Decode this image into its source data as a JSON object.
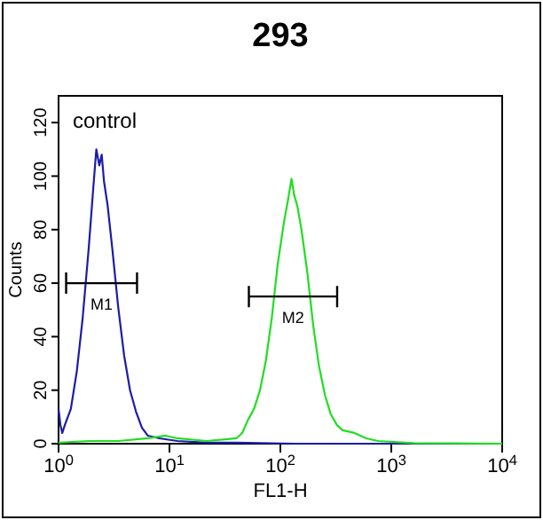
{
  "chart_data": {
    "type": "line",
    "title": "293",
    "xlabel": "FL1-H",
    "ylabel": "Counts",
    "log": "x",
    "xlim": [
      1,
      10000
    ],
    "xticks": [
      {
        "value": 1,
        "label": "10$^{0}$"
      },
      {
        "value": 10,
        "label": "10$^{1}$"
      },
      {
        "value": 100,
        "label": "10$^{2}$"
      },
      {
        "value": 1000,
        "label": "10$^{3}$"
      },
      {
        "value": 10000,
        "label": "10$^{4}$"
      }
    ],
    "ylim": [
      0,
      130
    ],
    "yticks": [
      0,
      20,
      40,
      60,
      80,
      100,
      120
    ],
    "grid": false,
    "line_style": "solid",
    "annotations": [
      "control"
    ],
    "series": [
      {
        "color": "#1c1ca8",
        "x": [
          1,
          1.04,
          1.08,
          1.14,
          1.29,
          1.46,
          1.65,
          1.87,
          2.06,
          2.19,
          2.33,
          2.45,
          2.57,
          2.77,
          3.05,
          3.45,
          3.9,
          4.41,
          4.99,
          5.64,
          6.37,
          8.15,
          11.8,
          21.7,
          40.1,
          137,
          10000
        ],
        "values": [
          13,
          7,
          4,
          7,
          13,
          27,
          47,
          73,
          96,
          110,
          104,
          108,
          98,
          89,
          73,
          51,
          33,
          20,
          12,
          6,
          3,
          2,
          1,
          0.4,
          0.4,
          0,
          0
        ]
      },
      {
        "color": "#22dd22",
        "x": [
          1,
          1.87,
          3.45,
          6.37,
          9.2,
          11.8,
          21.7,
          40.1,
          45.3,
          51.2,
          57.9,
          65.5,
          74,
          83.7,
          94.6,
          107,
          117,
          126,
          133,
          142,
          155,
          175,
          198,
          223,
          253,
          285,
          323,
          365,
          466,
          596,
          762,
          1589,
          10000
        ],
        "values": [
          0.4,
          1,
          1,
          2,
          3,
          2,
          1,
          2,
          4,
          9,
          13,
          20,
          31,
          47,
          67,
          82,
          91,
          99,
          93,
          89,
          80,
          64,
          44,
          29,
          18,
          11,
          7,
          5,
          4,
          2,
          1,
          0.2,
          0
        ]
      },
      {
        "name": "M1",
        "color": "#000000",
        "x": [
          1.17,
          5.1
        ],
        "values": [
          60,
          60
        ]
      },
      {
        "name": "M2",
        "color": "#000000",
        "x": [
          52,
          325
        ],
        "values": [
          55,
          55
        ]
      }
    ]
  }
}
